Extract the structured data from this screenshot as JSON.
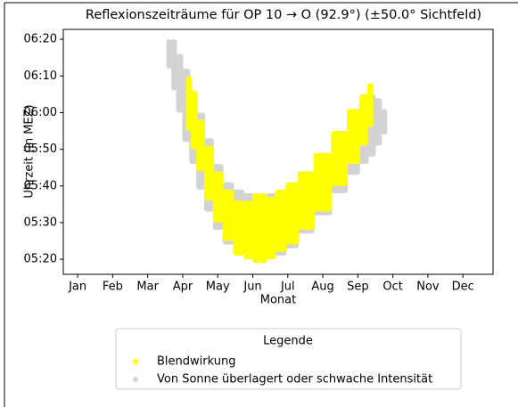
{
  "chart_data": {
    "type": "range_scatter",
    "title": "Reflexionszeiträume für OP 10 → O (92.9°) (±50.0° Sichtfeld)",
    "x_label": "Monat",
    "y_label": "Uhrzeit (in MEZ)",
    "xlim": [
      -0.41,
      11.86
    ],
    "xticks": [
      {
        "value": 0,
        "label": "Jan"
      },
      {
        "value": 1,
        "label": "Feb"
      },
      {
        "value": 2,
        "label": "Mar"
      },
      {
        "value": 3,
        "label": "Apr"
      },
      {
        "value": 4,
        "label": "May"
      },
      {
        "value": 5,
        "label": "Jun"
      },
      {
        "value": 6,
        "label": "Jul"
      },
      {
        "value": 7,
        "label": "Aug"
      },
      {
        "value": 8,
        "label": "Sep"
      },
      {
        "value": 9,
        "label": "Oct"
      },
      {
        "value": 10,
        "label": "Nov"
      },
      {
        "value": 11,
        "label": "Dec"
      }
    ],
    "ylim": [
      315.9,
      382.7
    ],
    "yticks": [
      {
        "value": 320,
        "label": "05:20"
      },
      {
        "value": 330,
        "label": "05:30"
      },
      {
        "value": 340,
        "label": "05:40"
      },
      {
        "value": 350,
        "label": "05:50"
      },
      {
        "value": 360,
        "label": "06:00"
      },
      {
        "value": 370,
        "label": "06:10"
      },
      {
        "value": 380,
        "label": "06:20"
      }
    ],
    "legend_title": "Legende",
    "legend": "below",
    "series": [
      {
        "name": "Von Sonne überlagert oder schwache Intensität",
        "color": "#d3d3d3",
        "x": [
          2.62,
          2.75,
          2.9,
          3.1,
          3.3,
          3.5,
          3.75,
          4.0,
          4.3,
          4.6,
          4.9,
          5.1,
          5.3,
          5.5,
          5.8,
          6.1,
          6.5,
          7.0,
          7.5,
          7.9,
          8.2,
          8.4,
          8.6,
          8.75
        ],
        "high": [
          380,
          380,
          376,
          372,
          366,
          360,
          353,
          346,
          341,
          339,
          338,
          338,
          338,
          338,
          339,
          341,
          344,
          349,
          355,
          360,
          363,
          365,
          364,
          361
        ],
        "low": [
          372,
          366,
          360,
          352,
          346,
          339,
          333,
          328,
          324,
          321,
          320,
          319,
          319,
          320,
          321,
          323,
          327,
          332,
          338,
          343,
          346,
          348,
          351,
          354
        ]
      },
      {
        "name": "Blendwirkung",
        "color": "#ffff00",
        "x": [
          3.18,
          3.3,
          3.5,
          3.75,
          4.0,
          4.3,
          4.6,
          4.9,
          5.1,
          5.3,
          5.5,
          5.8,
          6.1,
          6.5,
          7.0,
          7.5,
          7.9,
          8.2,
          8.35
        ],
        "high": [
          370,
          366,
          358,
          351,
          344,
          339,
          336,
          336,
          338,
          338,
          337,
          339,
          341,
          344,
          349,
          355,
          361,
          365,
          368
        ],
        "low": [
          355,
          350,
          344,
          336,
          330,
          325,
          321,
          320,
          319,
          319,
          320,
          322,
          324,
          328,
          333,
          340,
          346,
          351,
          356
        ]
      }
    ],
    "legend_order": [
      1,
      0
    ]
  }
}
